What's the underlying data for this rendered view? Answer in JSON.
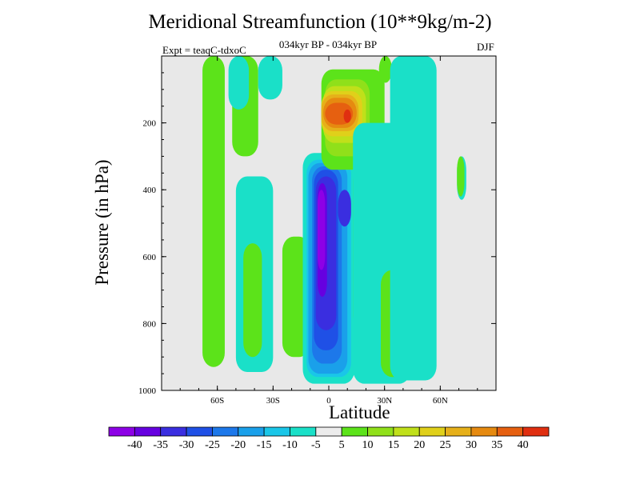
{
  "chart_data": {
    "type": "heatmap",
    "title": "Meridional Streamfunction (10**9kg/m-2)",
    "subtitle": "034kyr BP - 034kyr BP",
    "experiment": "Expt = teaqC-tdxoC",
    "season": "DJF",
    "xlabel": "Latitude",
    "ylabel": "Pressure (in hPa)",
    "x_range": [
      -90,
      90
    ],
    "y_range": [
      1000,
      0
    ],
    "x_ticks": [
      {
        "value": -60,
        "label": "60S"
      },
      {
        "value": -30,
        "label": "30S"
      },
      {
        "value": 0,
        "label": "0"
      },
      {
        "value": 30,
        "label": "30N"
      },
      {
        "value": 60,
        "label": "60N"
      }
    ],
    "y_ticks": [
      {
        "value": 200,
        "label": "200"
      },
      {
        "value": 400,
        "label": "400"
      },
      {
        "value": 600,
        "label": "600"
      },
      {
        "value": 800,
        "label": "800"
      },
      {
        "value": 1000,
        "label": "1000"
      }
    ],
    "background_color": "#e8e8e8",
    "contour_levels": [
      -40,
      -35,
      -30,
      -25,
      -20,
      -15,
      -10,
      -5,
      5,
      10,
      15,
      20,
      25,
      30,
      35,
      40
    ],
    "colorbar_colors": [
      "#8d00e6",
      "#6600e0",
      "#3a2ee0",
      "#1f50e6",
      "#1d78ea",
      "#1aa0ea",
      "#1ac6e8",
      "#1ae0c8",
      "#ececec",
      "#5ce31a",
      "#90e01a",
      "#c0e01a",
      "#e0d01a",
      "#e6b01a",
      "#e68a10",
      "#e66010",
      "#e02f10"
    ],
    "regions": [
      {
        "name": "positive-band-70S",
        "value": 5,
        "level": 9,
        "lat": [
          -68,
          -56
        ],
        "p": [
          0,
          930
        ],
        "shape": "band"
      },
      {
        "name": "positive-band-50S",
        "value": 5,
        "level": 9,
        "lat": [
          -52,
          -38
        ],
        "p": [
          0,
          300
        ],
        "shape": "band"
      },
      {
        "name": "negative-band-50S",
        "value": -5,
        "level": 7,
        "lat": [
          -54,
          -43
        ],
        "p": [
          0,
          160
        ],
        "shape": "band"
      },
      {
        "name": "negative-cell-45S",
        "value": -5,
        "level": 7,
        "lat": [
          -50,
          -30
        ],
        "p": [
          360,
          945
        ],
        "shape": "band"
      },
      {
        "name": "positive-cell-40S",
        "value": 5,
        "level": 9,
        "lat": [
          -46,
          -36
        ],
        "p": [
          560,
          900
        ],
        "shape": "band"
      },
      {
        "name": "negative-band-30S",
        "value": -5,
        "level": 7,
        "lat": [
          -38,
          -25
        ],
        "p": [
          0,
          130
        ],
        "shape": "band"
      },
      {
        "name": "positive-cell-20S",
        "value": 5,
        "level": 9,
        "lat": [
          -25,
          -10
        ],
        "p": [
          540,
          900
        ],
        "shape": "band"
      },
      {
        "name": "negative-hadley-sh",
        "value": -5,
        "level": 7,
        "lat": [
          -14,
          14
        ],
        "p": [
          290,
          980
        ],
        "shape": "band"
      },
      {
        "name": "negative-hadley-sh-10",
        "value": -10,
        "level": 6,
        "lat": [
          -12,
          12
        ],
        "p": [
          310,
          960
        ],
        "shape": "band"
      },
      {
        "name": "negative-hadley-sh-15",
        "value": -15,
        "level": 5,
        "lat": [
          -11,
          10
        ],
        "p": [
          320,
          950
        ],
        "shape": "band"
      },
      {
        "name": "negative-hadley-sh-20",
        "value": -20,
        "level": 4,
        "lat": [
          -9,
          7
        ],
        "p": [
          330,
          920
        ],
        "shape": "band"
      },
      {
        "name": "negative-hadley-sh-25",
        "value": -25,
        "level": 3,
        "lat": [
          -8,
          5
        ],
        "p": [
          340,
          880
        ],
        "shape": "band"
      },
      {
        "name": "negative-hadley-sh-30",
        "value": -30,
        "level": 2,
        "lat": [
          -7,
          4
        ],
        "p": [
          360,
          820
        ],
        "shape": "band"
      },
      {
        "name": "negative-hadley-sh-35",
        "value": -35,
        "level": 1,
        "lat": [
          -6,
          -1
        ],
        "p": [
          380,
          720
        ],
        "shape": "band"
      },
      {
        "name": "negative-hadley-sh-40",
        "value": -40,
        "level": 0,
        "lat": [
          -6,
          -2
        ],
        "p": [
          400,
          640
        ],
        "shape": "band"
      },
      {
        "name": "negative-hadley-core-east",
        "value": -30,
        "level": 2,
        "lat": [
          5,
          12
        ],
        "p": [
          400,
          510
        ],
        "shape": "band"
      },
      {
        "name": "positive-hadley-nh",
        "value": 5,
        "level": 9,
        "lat": [
          -4,
          30
        ],
        "p": [
          40,
          340
        ],
        "shape": "band"
      },
      {
        "name": "positive-hadley-nh-10",
        "value": 10,
        "level": 10,
        "lat": [
          -2,
          22
        ],
        "p": [
          70,
          300
        ],
        "shape": "band"
      },
      {
        "name": "positive-hadley-nh-15",
        "value": 15,
        "level": 11,
        "lat": [
          -3,
          20
        ],
        "p": [
          90,
          260
        ],
        "shape": "band"
      },
      {
        "name": "positive-hadley-nh-20",
        "value": 20,
        "level": 12,
        "lat": [
          -4,
          18
        ],
        "p": [
          105,
          240
        ],
        "shape": "band"
      },
      {
        "name": "positive-hadley-nh-25",
        "value": 25,
        "level": 13,
        "lat": [
          -4,
          16
        ],
        "p": [
          115,
          225
        ],
        "shape": "band"
      },
      {
        "name": "positive-hadley-nh-30",
        "value": 30,
        "level": 14,
        "lat": [
          -3,
          15
        ],
        "p": [
          125,
          215
        ],
        "shape": "band"
      },
      {
        "name": "positive-hadley-nh-35",
        "value": 35,
        "level": 15,
        "lat": [
          -2,
          13
        ],
        "p": [
          140,
          205
        ],
        "shape": "band"
      },
      {
        "name": "positive-hadley-nh-40",
        "value": 40,
        "level": 16,
        "lat": [
          8,
          12
        ],
        "p": [
          160,
          200
        ],
        "shape": "band"
      },
      {
        "name": "positive-tail-nh",
        "value": 5,
        "level": 9,
        "lat": [
          13,
          26
        ],
        "p": [
          330,
          820
        ],
        "shape": "band"
      },
      {
        "name": "positive-tail-nh-10",
        "value": 10,
        "level": 10,
        "lat": [
          18,
          23
        ],
        "p": [
          380,
          600
        ],
        "shape": "band"
      },
      {
        "name": "negative-cell-25N",
        "value": -5,
        "level": 7,
        "lat": [
          13,
          44
        ],
        "p": [
          200,
          980
        ],
        "shape": "band"
      },
      {
        "name": "positive-cell-40N",
        "value": 5,
        "level": 9,
        "lat": [
          28,
          44
        ],
        "p": [
          640,
          960
        ],
        "shape": "band"
      },
      {
        "name": "positive-band-40N",
        "value": 5,
        "level": 9,
        "lat": [
          27,
          34
        ],
        "p": [
          0,
          80
        ],
        "shape": "band"
      },
      {
        "name": "positive-band-45N-lower",
        "value": 5,
        "level": 9,
        "lat": [
          36,
          45
        ],
        "p": [
          480,
          860
        ],
        "shape": "band"
      },
      {
        "name": "negative-band-55N",
        "value": -5,
        "level": 7,
        "lat": [
          33,
          58
        ],
        "p": [
          0,
          970
        ],
        "shape": "band"
      },
      {
        "name": "negative-band-75N",
        "value": -5,
        "level": 7,
        "lat": [
          69,
          74
        ],
        "p": [
          300,
          430
        ],
        "shape": "band"
      },
      {
        "name": "positive-band-75N",
        "value": 5,
        "level": 9,
        "lat": [
          69,
          73
        ],
        "p": [
          300,
          420
        ],
        "shape": "band"
      }
    ],
    "colorbar_labels": [
      "-40",
      "-35",
      "-30",
      "-25",
      "-20",
      "-15",
      "-10",
      "-5",
      "5",
      "10",
      "15",
      "20",
      "25",
      "30",
      "35",
      "40"
    ]
  }
}
